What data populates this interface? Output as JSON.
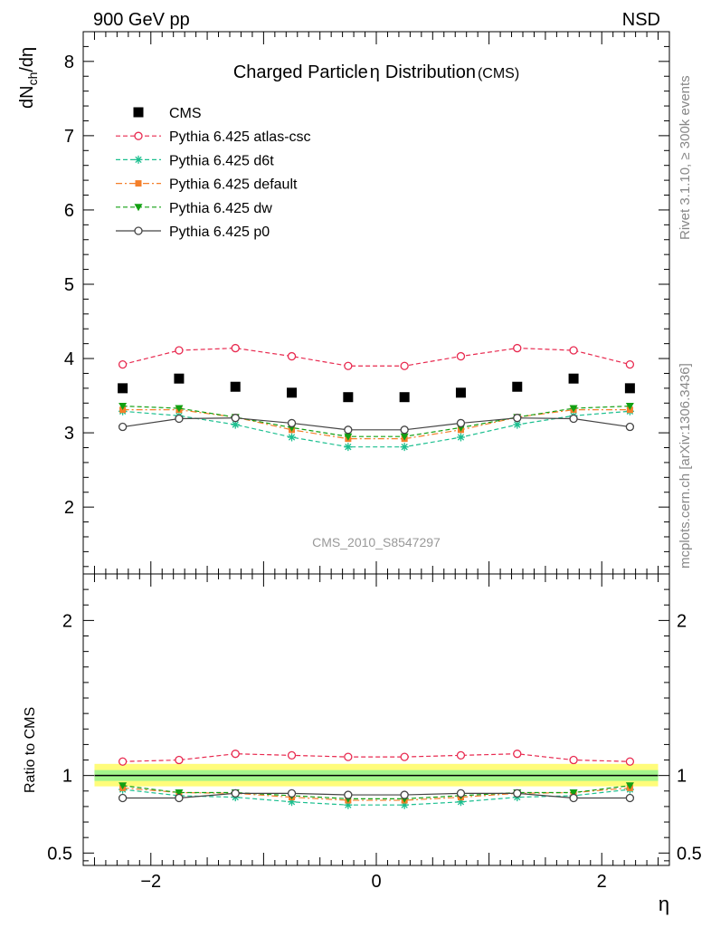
{
  "header": {
    "left": "900 GeV pp",
    "right": "NSD"
  },
  "side_labels": {
    "rivet": "Rivet 3.1.10, ≥ 300k events",
    "mcplots": "mcplots.cern.ch [arXiv:1306.3436]"
  },
  "colors": {
    "cms": "#000000",
    "atlas": "#e8294f",
    "d6t": "#1bbf8f",
    "default": "#f47f2a",
    "dw": "#12a012",
    "p0": "#444444",
    "band_outer": "#fffc7a",
    "band_inner": "#a3f58c"
  },
  "chart_data": [
    {
      "type": "scatter",
      "title": "Charged Particle",
      "title_symbol": "η",
      "title_rest": "Distribution",
      "title_suffix": "(CMS)",
      "ylabel": "dN",
      "ylabel_sub": "ch",
      "ylabel_rest": "/dη",
      "ylim": [
        1.1,
        8.4
      ],
      "xlim": [
        -2.6,
        2.6
      ],
      "yticks": [
        "2",
        "3",
        "4",
        "5",
        "6",
        "7",
        "8"
      ],
      "watermark": "CMS_2010_S8547297",
      "legend_position": "top-left",
      "x": [
        -2.25,
        -1.75,
        -1.25,
        -0.75,
        -0.25,
        0.25,
        0.75,
        1.25,
        1.75,
        2.25
      ],
      "series": [
        {
          "name": "CMS",
          "key": "cms",
          "marker": "square",
          "line": "none",
          "values": [
            3.6,
            3.73,
            3.62,
            3.54,
            3.48,
            3.48,
            3.54,
            3.62,
            3.73,
            3.6
          ]
        },
        {
          "name": "Pythia 6.425 atlas-csc",
          "key": "atlas",
          "marker": "open-circle",
          "line": "dashed",
          "values": [
            3.92,
            4.11,
            4.14,
            4.03,
            3.9,
            3.9,
            4.03,
            4.14,
            4.11,
            3.92
          ]
        },
        {
          "name": "Pythia 6.425 d6t",
          "key": "d6t",
          "marker": "star",
          "line": "dashed",
          "values": [
            3.29,
            3.23,
            3.11,
            2.94,
            2.81,
            2.81,
            2.94,
            3.11,
            3.23,
            3.29
          ]
        },
        {
          "name": "Pythia 6.425 default",
          "key": "default",
          "marker": "filled-square",
          "line": "dashdot",
          "values": [
            3.31,
            3.31,
            3.21,
            3.04,
            2.92,
            2.92,
            3.04,
            3.21,
            3.31,
            3.31
          ]
        },
        {
          "name": "Pythia 6.425 dw",
          "key": "dw",
          "marker": "down-triangle",
          "line": "dashed",
          "values": [
            3.36,
            3.33,
            3.21,
            3.07,
            2.95,
            2.95,
            3.07,
            3.21,
            3.33,
            3.36
          ]
        },
        {
          "name": "Pythia 6.425 p0",
          "key": "p0",
          "marker": "open-circle",
          "line": "solid",
          "values": [
            3.08,
            3.19,
            3.2,
            3.13,
            3.04,
            3.04,
            3.13,
            3.2,
            3.19,
            3.08
          ]
        }
      ]
    },
    {
      "type": "scatter",
      "ylabel": "Ratio to CMS",
      "xlabel": "η",
      "ylim": [
        0.42,
        2.3
      ],
      "xlim": [
        -2.6,
        2.6
      ],
      "yticks": [
        "0.5",
        "1",
        "2"
      ],
      "xticks": [
        "−2",
        "0",
        "2"
      ],
      "reference": 1,
      "x": [
        -2.25,
        -1.75,
        -1.25,
        -0.75,
        -0.25,
        0.25,
        0.75,
        1.25,
        1.75,
        2.25
      ],
      "band_outer": [
        0.93,
        1.075
      ],
      "band_inner": [
        0.965,
        1.035
      ],
      "series": [
        {
          "key": "atlas",
          "values": [
            1.09,
            1.1,
            1.14,
            1.13,
            1.12,
            1.12,
            1.13,
            1.14,
            1.1,
            1.09
          ]
        },
        {
          "key": "d6t",
          "values": [
            0.91,
            0.87,
            0.86,
            0.83,
            0.81,
            0.81,
            0.83,
            0.86,
            0.87,
            0.91
          ]
        },
        {
          "key": "default",
          "values": [
            0.92,
            0.89,
            0.885,
            0.86,
            0.84,
            0.84,
            0.86,
            0.885,
            0.89,
            0.92
          ]
        },
        {
          "key": "dw",
          "values": [
            0.935,
            0.89,
            0.89,
            0.87,
            0.85,
            0.85,
            0.87,
            0.89,
            0.89,
            0.935
          ]
        },
        {
          "key": "p0",
          "values": [
            0.855,
            0.855,
            0.885,
            0.885,
            0.875,
            0.875,
            0.885,
            0.885,
            0.855,
            0.855
          ]
        }
      ]
    }
  ]
}
